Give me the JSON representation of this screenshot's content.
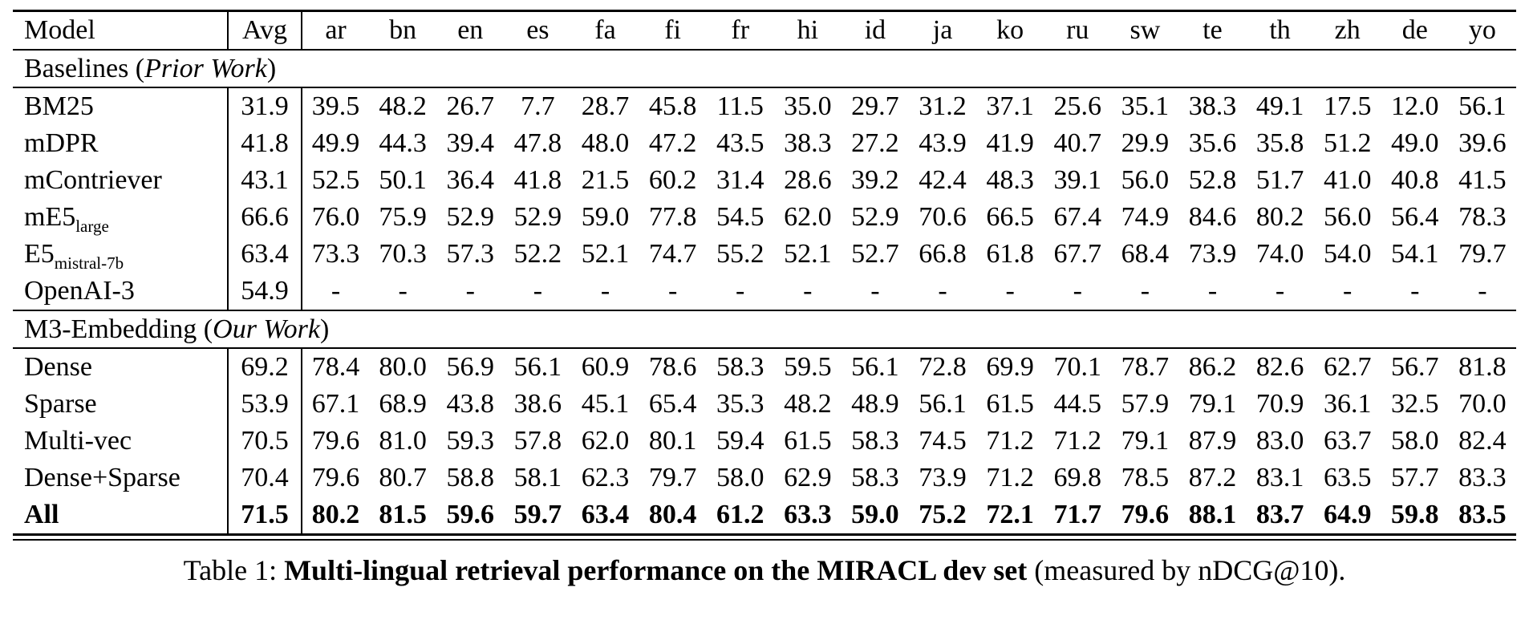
{
  "table": {
    "columns": [
      "Model",
      "Avg",
      "ar",
      "bn",
      "en",
      "es",
      "fa",
      "fi",
      "fr",
      "hi",
      "id",
      "ja",
      "ko",
      "ru",
      "sw",
      "te",
      "th",
      "zh",
      "de",
      "yo"
    ],
    "sections": [
      {
        "prefix": "Baselines (",
        "italic": "Prior Work",
        "suffix": ")",
        "rows": [
          {
            "model": "BM25",
            "sub": "",
            "avg": "31.9",
            "bold": false,
            "values": [
              "39.5",
              "48.2",
              "26.7",
              "7.7",
              "28.7",
              "45.8",
              "11.5",
              "35.0",
              "29.7",
              "31.2",
              "37.1",
              "25.6",
              "35.1",
              "38.3",
              "49.1",
              "17.5",
              "12.0",
              "56.1"
            ]
          },
          {
            "model": "mDPR",
            "sub": "",
            "avg": "41.8",
            "bold": false,
            "values": [
              "49.9",
              "44.3",
              "39.4",
              "47.8",
              "48.0",
              "47.2",
              "43.5",
              "38.3",
              "27.2",
              "43.9",
              "41.9",
              "40.7",
              "29.9",
              "35.6",
              "35.8",
              "51.2",
              "49.0",
              "39.6"
            ]
          },
          {
            "model": "mContriever",
            "sub": "",
            "avg": "43.1",
            "bold": false,
            "values": [
              "52.5",
              "50.1",
              "36.4",
              "41.8",
              "21.5",
              "60.2",
              "31.4",
              "28.6",
              "39.2",
              "42.4",
              "48.3",
              "39.1",
              "56.0",
              "52.8",
              "51.7",
              "41.0",
              "40.8",
              "41.5"
            ]
          },
          {
            "model": "mE5",
            "sub": "large",
            "avg": "66.6",
            "bold": false,
            "values": [
              "76.0",
              "75.9",
              "52.9",
              "52.9",
              "59.0",
              "77.8",
              "54.5",
              "62.0",
              "52.9",
              "70.6",
              "66.5",
              "67.4",
              "74.9",
              "84.6",
              "80.2",
              "56.0",
              "56.4",
              "78.3"
            ]
          },
          {
            "model": "E5",
            "sub": "mistral-7b",
            "avg": "63.4",
            "bold": false,
            "values": [
              "73.3",
              "70.3",
              "57.3",
              "52.2",
              "52.1",
              "74.7",
              "55.2",
              "52.1",
              "52.7",
              "66.8",
              "61.8",
              "67.7",
              "68.4",
              "73.9",
              "74.0",
              "54.0",
              "54.1",
              "79.7"
            ]
          },
          {
            "model": "OpenAI-3",
            "sub": "",
            "avg": "54.9",
            "bold": false,
            "values": [
              "-",
              "-",
              "-",
              "-",
              "-",
              "-",
              "-",
              "-",
              "-",
              "-",
              "-",
              "-",
              "-",
              "-",
              "-",
              "-",
              "-",
              "-"
            ]
          }
        ]
      },
      {
        "prefix": "M3-Embedding (",
        "italic": "Our Work",
        "suffix": ")",
        "rows": [
          {
            "model": "Dense",
            "sub": "",
            "avg": "69.2",
            "bold": false,
            "values": [
              "78.4",
              "80.0",
              "56.9",
              "56.1",
              "60.9",
              "78.6",
              "58.3",
              "59.5",
              "56.1",
              "72.8",
              "69.9",
              "70.1",
              "78.7",
              "86.2",
              "82.6",
              "62.7",
              "56.7",
              "81.8"
            ]
          },
          {
            "model": "Sparse",
            "sub": "",
            "avg": "53.9",
            "bold": false,
            "values": [
              "67.1",
              "68.9",
              "43.8",
              "38.6",
              "45.1",
              "65.4",
              "35.3",
              "48.2",
              "48.9",
              "56.1",
              "61.5",
              "44.5",
              "57.9",
              "79.1",
              "70.9",
              "36.1",
              "32.5",
              "70.0"
            ]
          },
          {
            "model": "Multi-vec",
            "sub": "",
            "avg": "70.5",
            "bold": false,
            "values": [
              "79.6",
              "81.0",
              "59.3",
              "57.8",
              "62.0",
              "80.1",
              "59.4",
              "61.5",
              "58.3",
              "74.5",
              "71.2",
              "71.2",
              "79.1",
              "87.9",
              "83.0",
              "63.7",
              "58.0",
              "82.4"
            ]
          },
          {
            "model": "Dense+Sparse",
            "sub": "",
            "avg": "70.4",
            "bold": false,
            "values": [
              "79.6",
              "80.7",
              "58.8",
              "58.1",
              "62.3",
              "79.7",
              "58.0",
              "62.9",
              "58.3",
              "73.9",
              "71.2",
              "69.8",
              "78.5",
              "87.2",
              "83.1",
              "63.5",
              "57.7",
              "83.3"
            ]
          },
          {
            "model": "All",
            "sub": "",
            "avg": "71.5",
            "bold": true,
            "values": [
              "80.2",
              "81.5",
              "59.6",
              "59.7",
              "63.4",
              "80.4",
              "61.2",
              "63.3",
              "59.0",
              "75.2",
              "72.1",
              "71.7",
              "79.6",
              "88.1",
              "83.7",
              "64.9",
              "59.8",
              "83.5"
            ]
          }
        ]
      }
    ]
  },
  "caption": {
    "prefix": "Table 1: ",
    "bold": "Multi-lingual retrieval performance on the MIRACL dev set",
    "suffix": " (measured by nDCG@10)."
  }
}
